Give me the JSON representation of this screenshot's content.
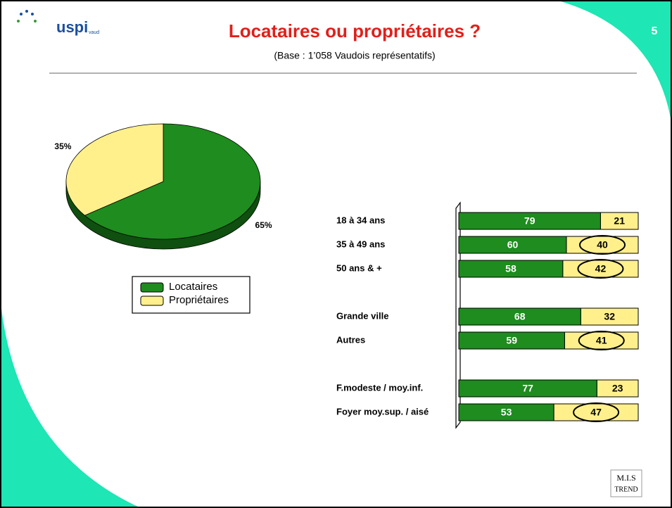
{
  "header": {
    "title": "Locataires ou propriétaires ?",
    "subtitle": "(Base : 1’058 Vaudois représentatifs)",
    "page_number": "5",
    "logo": "uspi",
    "logo_sub": "vaud",
    "footer_logo": "M.I.S",
    "footer_logo_sub": "TREND"
  },
  "chart_data": [
    {
      "type": "pie",
      "categories": [
        "Locataires",
        "Propriétaires"
      ],
      "values": [
        65,
        35
      ],
      "value_labels": [
        "65%",
        "35%"
      ],
      "colors": [
        "#1e8c1e",
        "#fff08c"
      ],
      "legend": "bottom"
    },
    {
      "type": "stacked-bar-horizontal",
      "categories": [
        "18 à 34 ans",
        "35 à 49 ans",
        "50 ans & +",
        null,
        "Grande ville",
        "Autres",
        null,
        "F.modeste / moy.inf.",
        "Foyer moy.sup. / aisé"
      ],
      "series": [
        {
          "name": "Locataires",
          "color": "#1e8c1e",
          "values": [
            79,
            60,
            58,
            null,
            68,
            59,
            null,
            77,
            53
          ]
        },
        {
          "name": "Propriétaires",
          "color": "#fff08c",
          "values": [
            21,
            40,
            42,
            null,
            32,
            41,
            null,
            23,
            47
          ]
        }
      ],
      "xlim": [
        0,
        100
      ],
      "circled": [
        false,
        true,
        true,
        false,
        false,
        true,
        false,
        false,
        true
      ]
    }
  ]
}
